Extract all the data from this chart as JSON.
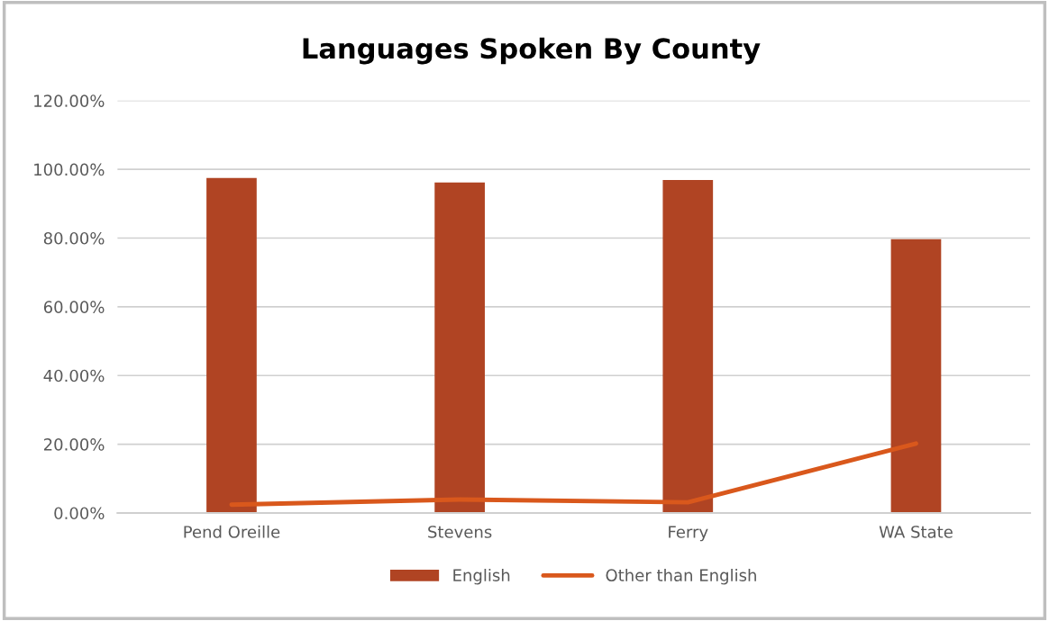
{
  "chart_data": {
    "type": "bar",
    "title": "Languages Spoken By County",
    "categories": [
      "Pend Oreille",
      "Stevens",
      "Ferry",
      "WA State"
    ],
    "series": [
      {
        "name": "English",
        "color": "#b04423",
        "values": [
          97.5,
          96.2,
          96.9,
          79.7
        ]
      },
      {
        "name": "Other than English",
        "type": "line",
        "color": "#d9581c",
        "values": [
          2.4,
          3.9,
          3.1,
          20.2
        ]
      }
    ],
    "ylim": [
      0,
      120
    ],
    "yticks": [
      {
        "value": 0,
        "label": "0.00%"
      },
      {
        "value": 20,
        "label": "20.00%"
      },
      {
        "value": 40,
        "label": "40.00%"
      },
      {
        "value": 60,
        "label": "60.00%"
      },
      {
        "value": 80,
        "label": "80.00%"
      },
      {
        "value": 100,
        "label": "100.00%"
      },
      {
        "value": 120,
        "label": "120.00%"
      }
    ],
    "grid": "y",
    "legend": "bottom"
  }
}
